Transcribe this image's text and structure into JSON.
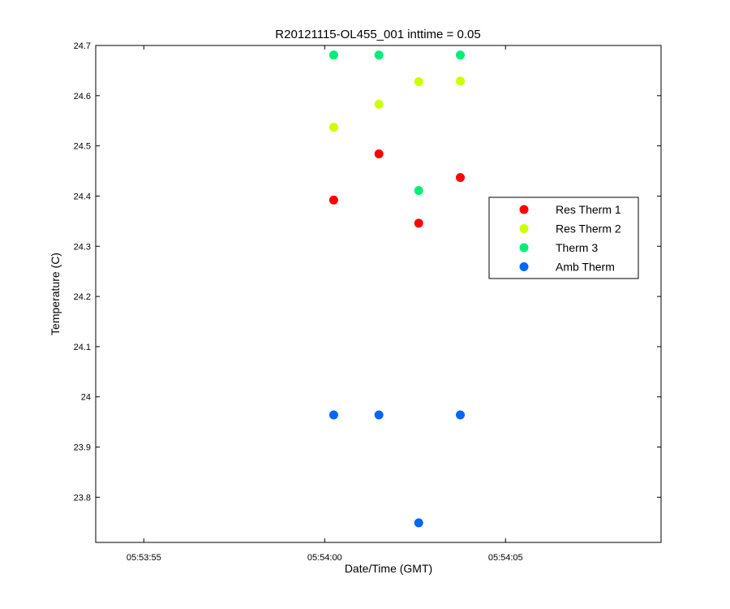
{
  "chart_data": {
    "type": "scatter",
    "title": "R20121115-OL455_001 inttime = 0.05",
    "xlabel": "Date/Time (GMT)",
    "ylabel": "Temperature (C)",
    "xlim": [
      "05:53:53.67",
      "05:54:09.30"
    ],
    "ylim": [
      23.71,
      24.7
    ],
    "xticks": [
      "05:53:55",
      "05:54:00",
      "05:54:05"
    ],
    "yticks": [
      "23.8",
      "23.9",
      "24",
      "24.1",
      "24.2",
      "24.3",
      "24.4",
      "24.5",
      "24.6",
      "24.7"
    ],
    "grid": false,
    "legend_position": "right",
    "series": [
      {
        "name": "Res Therm 1",
        "color": "#ff0000",
        "points": [
          {
            "x": "05:54:00.25",
            "y": 24.392
          },
          {
            "x": "05:54:01.50",
            "y": 24.484
          },
          {
            "x": "05:54:02.60",
            "y": 24.346
          },
          {
            "x": "05:54:03.75",
            "y": 24.437
          }
        ]
      },
      {
        "name": "Res Therm 2",
        "color": "#ccff00",
        "points": [
          {
            "x": "05:54:00.25",
            "y": 24.537
          },
          {
            "x": "05:54:01.50",
            "y": 24.583
          },
          {
            "x": "05:54:02.60",
            "y": 24.628
          },
          {
            "x": "05:54:03.75",
            "y": 24.629
          }
        ]
      },
      {
        "name": "Therm 3",
        "color": "#00ee77",
        "points": [
          {
            "x": "05:54:00.25",
            "y": 24.681
          },
          {
            "x": "05:54:01.50",
            "y": 24.681
          },
          {
            "x": "05:54:02.60",
            "y": 24.411
          },
          {
            "x": "05:54:03.75",
            "y": 24.681
          }
        ]
      },
      {
        "name": "Amb Therm",
        "color": "#0066ff",
        "points": [
          {
            "x": "05:54:00.25",
            "y": 23.964
          },
          {
            "x": "05:54:01.50",
            "y": 23.964
          },
          {
            "x": "05:54:02.60",
            "y": 23.749
          },
          {
            "x": "05:54:03.75",
            "y": 23.964
          }
        ]
      }
    ]
  }
}
